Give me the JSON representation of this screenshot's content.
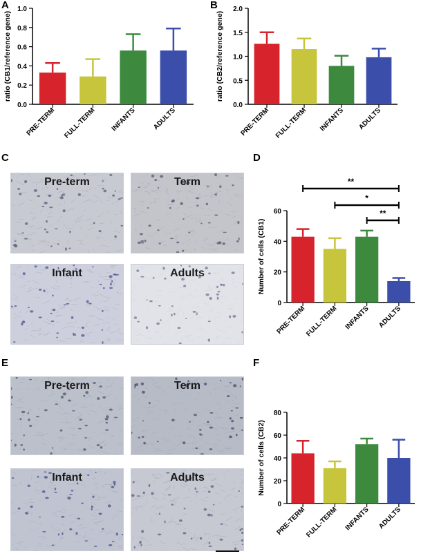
{
  "panels": {
    "A": "A",
    "B": "B",
    "C": "C",
    "D": "D",
    "E": "E",
    "F": "F"
  },
  "colors": {
    "pre_term": "#d6232c",
    "full_term": "#c6c53b",
    "infants": "#3d8a3f",
    "adults": "#3b4eaa"
  },
  "micrographs": {
    "C": [
      "Pre-term",
      "Term",
      "Infant",
      "Adults"
    ],
    "E": [
      "Pre-term",
      "Term",
      "Infant",
      "Adults"
    ]
  },
  "chart_data": [
    {
      "panel": "A",
      "type": "bar",
      "categories": [
        "PRE-TERM",
        "FULL-TERM",
        "INFANTS",
        "ADULTS"
      ],
      "values": [
        0.33,
        0.29,
        0.56,
        0.56
      ],
      "errors": [
        0.1,
        0.18,
        0.17,
        0.23
      ],
      "ylabel": "ratio (CB1/reference gene)",
      "ylim": [
        0,
        1.0
      ],
      "yticks": [
        "0.0",
        "0.2",
        "0.4",
        "0.6",
        "0.8",
        "1.0"
      ]
    },
    {
      "panel": "B",
      "type": "bar",
      "categories": [
        "PRE-TERM",
        "FULL-TERM",
        "INFANTS",
        "ADULTS"
      ],
      "values": [
        1.26,
        1.15,
        0.8,
        0.98
      ],
      "errors": [
        0.24,
        0.22,
        0.21,
        0.18
      ],
      "ylabel": "ratio (CB2/reference gene)",
      "ylim": [
        0,
        2.0
      ],
      "yticks": [
        "0.0",
        "0.5",
        "1.0",
        "1.5",
        "2.0"
      ]
    },
    {
      "panel": "D",
      "type": "bar",
      "categories": [
        "PRE-TERM",
        "FULL-TERM",
        "INFANTS",
        "ADULTS"
      ],
      "values": [
        43,
        35,
        43,
        14
      ],
      "errors": [
        5,
        7,
        4,
        2
      ],
      "ylabel": "Number of cells (CB1)",
      "ylim": [
        0,
        60
      ],
      "yticks": [
        "0",
        "20",
        "40",
        "60"
      ],
      "significance": [
        {
          "from": 0,
          "to": 3,
          "label": "**"
        },
        {
          "from": 1,
          "to": 3,
          "label": "*"
        },
        {
          "from": 2,
          "to": 3,
          "label": "**"
        }
      ]
    },
    {
      "panel": "F",
      "type": "bar",
      "categories": [
        "PRE-TERM",
        "FULL-TERM",
        "INFANTS",
        "ADULTS"
      ],
      "values": [
        44,
        31,
        52,
        40
      ],
      "errors": [
        11,
        6,
        5,
        16
      ],
      "ylabel": "Number of cells (CB2)",
      "ylim": [
        0,
        80
      ],
      "yticks": [
        "0",
        "20",
        "40",
        "60",
        "80"
      ]
    }
  ]
}
